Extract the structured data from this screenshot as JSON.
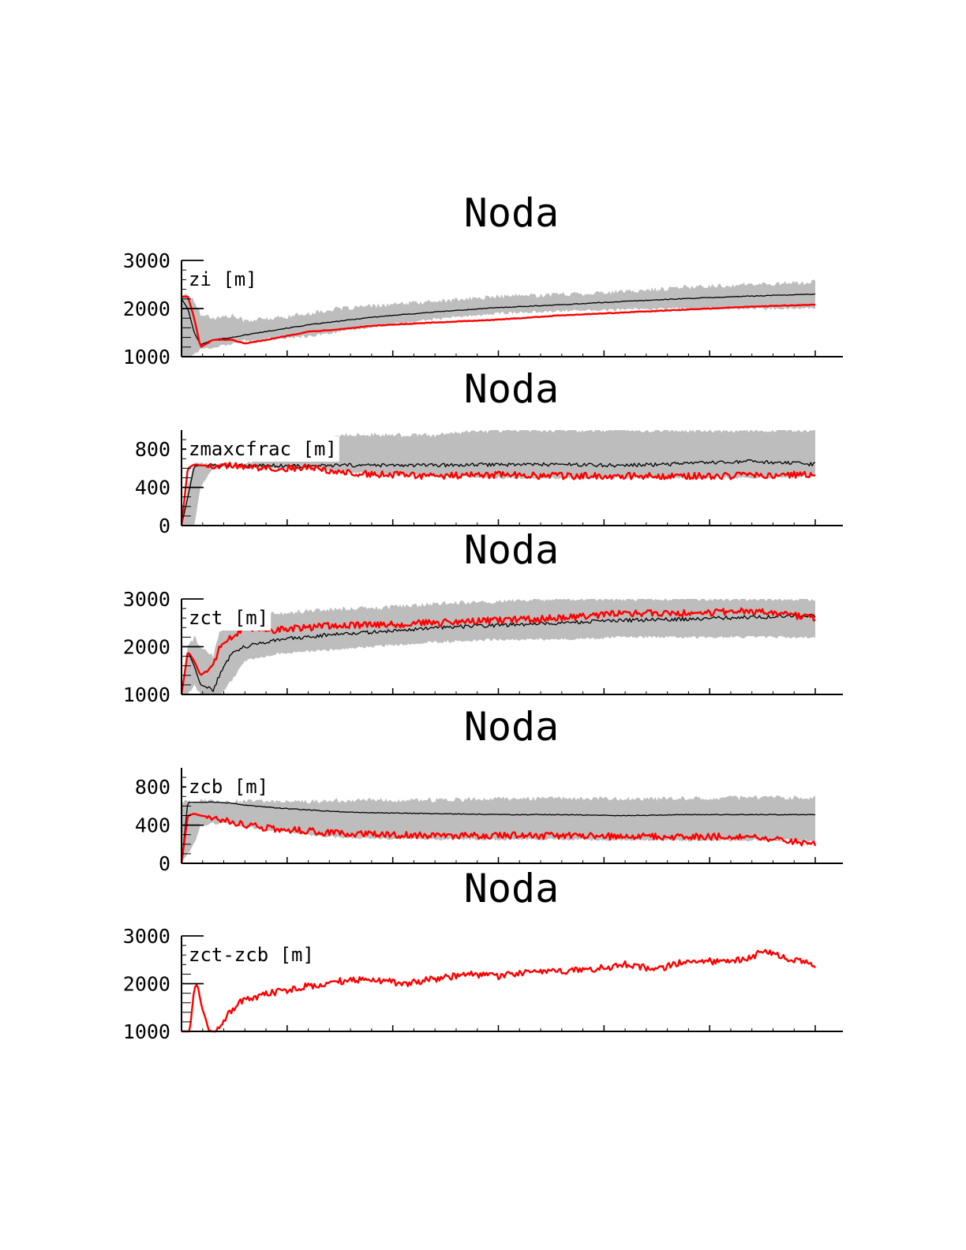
{
  "colors": {
    "background": "#ffffff",
    "spread": "#bdbdbd",
    "mean": "#000000",
    "model": "#ff0000"
  },
  "chart_data": [
    {
      "type": "line",
      "title": "Noda",
      "label": "zi [m]",
      "ylim": [
        1000,
        3000
      ],
      "yticks": [
        "1000",
        "2000",
        "3000"
      ],
      "xlim": [
        0,
        1
      ],
      "x": [
        0.0,
        0.01,
        0.02,
        0.03,
        0.05,
        0.08,
        0.1,
        0.15,
        0.2,
        0.25,
        0.3,
        0.4,
        0.5,
        0.6,
        0.7,
        0.8,
        0.9,
        1.0
      ],
      "band_low": [
        1000,
        1000,
        1050,
        1150,
        1200,
        1270,
        1330,
        1380,
        1420,
        1520,
        1620,
        1780,
        1900,
        1950,
        1980,
        2000,
        2000,
        2000
      ],
      "band_high": [
        2250,
        2300,
        2150,
        1900,
        1800,
        1850,
        1750,
        1800,
        1900,
        2000,
        2050,
        2150,
        2250,
        2300,
        2350,
        2450,
        2500,
        2550
      ],
      "series": [
        {
          "role": "mean",
          "values": [
            2200,
            2000,
            1500,
            1250,
            1350,
            1400,
            1450,
            1560,
            1660,
            1740,
            1820,
            1930,
            2020,
            2080,
            2150,
            2210,
            2260,
            2300
          ]
        },
        {
          "role": "model",
          "values": [
            2250,
            2250,
            1800,
            1200,
            1350,
            1350,
            1270,
            1390,
            1520,
            1570,
            1640,
            1710,
            1770,
            1860,
            1920,
            1980,
            2040,
            2080
          ]
        }
      ]
    },
    {
      "type": "line",
      "title": "Noda",
      "label": "zmaxcfrac [m]",
      "ylim": [
        0,
        1000
      ],
      "yticks": [
        "0",
        "400",
        "800"
      ],
      "xlim": [
        0,
        1
      ],
      "x": [
        0.0,
        0.01,
        0.02,
        0.03,
        0.05,
        0.08,
        0.1,
        0.15,
        0.2,
        0.25,
        0.3,
        0.4,
        0.5,
        0.6,
        0.7,
        0.8,
        0.9,
        1.0
      ],
      "band_low": [
        0,
        0,
        0,
        400,
        600,
        620,
        600,
        600,
        600,
        560,
        540,
        520,
        500,
        500,
        500,
        500,
        500,
        520
      ],
      "band_high": [
        0,
        400,
        650,
        650,
        650,
        650,
        650,
        700,
        750,
        950,
        950,
        950,
        1000,
        1000,
        1000,
        1000,
        1000,
        1000
      ],
      "series": [
        {
          "role": "mean",
          "values": [
            0,
            300,
            620,
            630,
            630,
            630,
            630,
            630,
            620,
            630,
            630,
            630,
            640,
            640,
            630,
            650,
            670,
            640
          ]
        },
        {
          "role": "model",
          "values": [
            0,
            600,
            640,
            630,
            630,
            630,
            610,
            600,
            610,
            560,
            540,
            520,
            530,
            520,
            520,
            520,
            520,
            540
          ]
        }
      ]
    },
    {
      "type": "line",
      "title": "Noda",
      "label": "zct [m]",
      "ylim": [
        1000,
        3000
      ],
      "yticks": [
        "1000",
        "2000",
        "3000"
      ],
      "xlim": [
        0,
        1
      ],
      "x": [
        0.0,
        0.01,
        0.02,
        0.03,
        0.05,
        0.06,
        0.08,
        0.1,
        0.15,
        0.2,
        0.25,
        0.3,
        0.4,
        0.5,
        0.6,
        0.7,
        0.8,
        0.9,
        1.0
      ],
      "band_low": [
        1000,
        1000,
        1200,
        1000,
        1000,
        1000,
        1300,
        1700,
        1850,
        1900,
        1950,
        2000,
        2100,
        2150,
        2150,
        2200,
        2200,
        2200,
        2200
      ],
      "band_high": [
        1000,
        2000,
        2200,
        2000,
        1800,
        2300,
        2500,
        2600,
        2700,
        2750,
        2800,
        2800,
        2900,
        2950,
        3000,
        3000,
        3000,
        3000,
        3000
      ],
      "series": [
        {
          "role": "mean",
          "values": [
            1000,
            1900,
            1600,
            1200,
            1100,
            1400,
            1900,
            2000,
            2150,
            2200,
            2280,
            2300,
            2400,
            2450,
            2500,
            2550,
            2580,
            2620,
            2650
          ]
        },
        {
          "role": "model",
          "values": [
            1000,
            1900,
            1700,
            1400,
            1600,
            2000,
            2200,
            2400,
            2350,
            2400,
            2450,
            2450,
            2500,
            2550,
            2600,
            2700,
            2700,
            2750,
            2600
          ]
        }
      ]
    },
    {
      "type": "line",
      "title": "Noda",
      "label": "zcb [m]",
      "ylim": [
        0,
        1000
      ],
      "yticks": [
        "0",
        "400",
        "800"
      ],
      "xlim": [
        0,
        1
      ],
      "x": [
        0.0,
        0.01,
        0.02,
        0.03,
        0.05,
        0.08,
        0.1,
        0.15,
        0.2,
        0.25,
        0.3,
        0.4,
        0.5,
        0.6,
        0.7,
        0.8,
        0.9,
        1.0
      ],
      "band_low": [
        0,
        100,
        200,
        400,
        420,
        420,
        380,
        340,
        300,
        270,
        260,
        250,
        250,
        250,
        240,
        240,
        240,
        240
      ],
      "band_high": [
        650,
        650,
        650,
        650,
        650,
        650,
        650,
        650,
        650,
        660,
        660,
        660,
        680,
        680,
        680,
        680,
        690,
        690
      ],
      "series": [
        {
          "role": "mean",
          "values": [
            0,
            640,
            640,
            640,
            640,
            630,
            610,
            580,
            560,
            540,
            530,
            520,
            510,
            510,
            500,
            510,
            510,
            510
          ]
        },
        {
          "role": "model",
          "values": [
            0,
            500,
            520,
            500,
            480,
            440,
            400,
            360,
            340,
            310,
            300,
            290,
            290,
            290,
            280,
            280,
            280,
            200
          ]
        }
      ]
    },
    {
      "type": "line",
      "title": "Noda",
      "label": "zct-zcb [m]",
      "ylim": [
        1000,
        3000
      ],
      "yticks": [
        "1000",
        "2000",
        "3000"
      ],
      "xlim": [
        0,
        1
      ],
      "x": [
        0.0,
        0.013,
        0.02,
        0.025,
        0.032,
        0.045,
        0.055,
        0.07,
        0.09,
        0.14,
        0.2,
        0.25,
        0.3,
        0.35,
        0.4,
        0.45,
        0.5,
        0.55,
        0.6,
        0.65,
        0.7,
        0.75,
        0.8,
        0.85,
        0.9,
        0.92,
        0.95,
        1.0
      ],
      "band_low": [],
      "band_high": [],
      "series": [
        {
          "role": "model",
          "values": [
            1000,
            1000,
            1900,
            2000,
            1500,
            1000,
            1000,
            1300,
            1600,
            1800,
            1950,
            2050,
            2100,
            2000,
            2100,
            2200,
            2150,
            2250,
            2250,
            2300,
            2400,
            2300,
            2500,
            2450,
            2550,
            2700,
            2550,
            2400
          ]
        }
      ]
    }
  ]
}
